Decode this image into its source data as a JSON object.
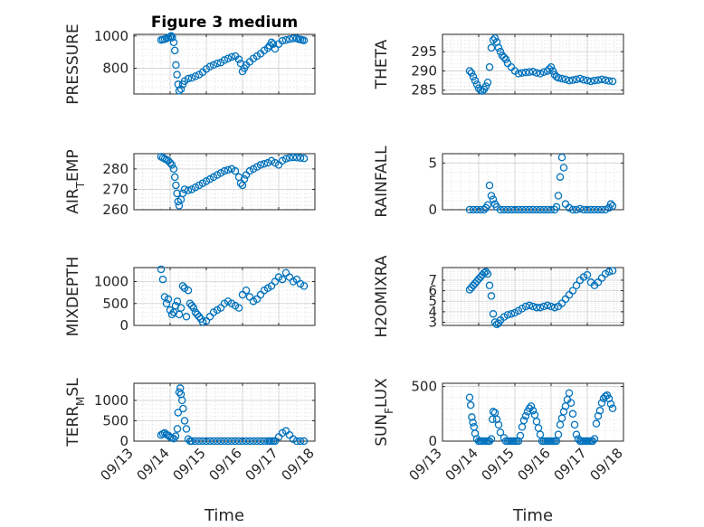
{
  "chart_data": [
    {
      "type": "scatter",
      "title": "Figure 3 medium",
      "ylabel": "PRESSURE",
      "xlabel": "",
      "xlim": [
        13,
        18
      ],
      "ylim": [
        640,
        1010
      ],
      "yticks": [
        800,
        1000
      ],
      "yticklabels": [
        "800",
        "1000"
      ],
      "xtick_labels_shown": false,
      "x": [
        13.75,
        13.8,
        13.85,
        13.9,
        13.95,
        14.0,
        14.03,
        14.06,
        14.1,
        14.13,
        14.16,
        14.19,
        14.22,
        14.25,
        14.3,
        14.35,
        14.4,
        14.5,
        14.6,
        14.7,
        14.8,
        14.9,
        15.0,
        15.1,
        15.2,
        15.3,
        15.4,
        15.5,
        15.6,
        15.7,
        15.8,
        15.9,
        15.95,
        16.0,
        16.05,
        16.1,
        16.2,
        16.3,
        16.4,
        16.5,
        16.6,
        16.7,
        16.75,
        16.8,
        16.85,
        16.9,
        17.0,
        17.1,
        17.2,
        17.3,
        17.4,
        17.5,
        17.55,
        17.6,
        17.65,
        17.7
      ],
      "y": [
        975,
        978,
        980,
        985,
        990,
        995,
        1000,
        990,
        960,
        910,
        820,
        760,
        700,
        660,
        670,
        700,
        720,
        735,
        740,
        750,
        760,
        775,
        795,
        810,
        820,
        830,
        835,
        850,
        860,
        870,
        875,
        855,
        830,
        780,
        800,
        820,
        840,
        860,
        875,
        890,
        910,
        925,
        940,
        960,
        950,
        920,
        950,
        970,
        975,
        980,
        985,
        985,
        980,
        978,
        975,
        972
      ]
    },
    {
      "type": "scatter",
      "title": "",
      "ylabel": "THETA",
      "xlabel": "",
      "xlim": [
        13,
        18
      ],
      "ylim": [
        284,
        299.5
      ],
      "yticks": [
        285,
        290,
        295
      ],
      "yticklabels": [
        "285",
        "290",
        "295"
      ],
      "xtick_labels_shown": false,
      "x": [
        13.75,
        13.8,
        13.85,
        13.9,
        13.95,
        14.0,
        14.05,
        14.1,
        14.15,
        14.2,
        14.25,
        14.3,
        14.35,
        14.4,
        14.45,
        14.5,
        14.55,
        14.6,
        14.65,
        14.7,
        14.75,
        14.8,
        14.9,
        15.0,
        15.1,
        15.2,
        15.3,
        15.4,
        15.5,
        15.6,
        15.7,
        15.8,
        15.9,
        15.95,
        16.0,
        16.05,
        16.1,
        16.15,
        16.2,
        16.3,
        16.4,
        16.5,
        16.6,
        16.7,
        16.8,
        16.9,
        17.0,
        17.1,
        17.2,
        17.3,
        17.4,
        17.5,
        17.6,
        17.7
      ],
      "y": [
        290,
        289.5,
        288.5,
        287.5,
        286.5,
        285.5,
        285,
        284.8,
        285.2,
        286,
        287,
        291,
        296,
        298,
        298.5,
        297.5,
        296,
        295,
        294,
        293.5,
        293,
        292,
        291,
        290,
        289.3,
        289.5,
        289.6,
        289.7,
        289.8,
        289.5,
        289.3,
        289.7,
        290,
        290.5,
        291,
        290,
        289,
        288.5,
        288.2,
        288,
        287.8,
        287.5,
        287.6,
        287.8,
        288,
        287.7,
        287.5,
        287.3,
        287.5,
        287.6,
        287.8,
        287.6,
        287.4,
        287.3
      ]
    },
    {
      "type": "scatter",
      "title": "",
      "ylabel": "AIR_TEMP",
      "xlabel": "",
      "xlim": [
        13,
        18
      ],
      "ylim": [
        260,
        287.5
      ],
      "yticks": [
        260,
        270,
        280
      ],
      "yticklabels": [
        "260",
        "270",
        "280"
      ],
      "xtick_labels_shown": false,
      "x": [
        13.75,
        13.8,
        13.85,
        13.9,
        13.95,
        14.0,
        14.05,
        14.1,
        14.13,
        14.16,
        14.19,
        14.22,
        14.25,
        14.3,
        14.35,
        14.4,
        14.5,
        14.6,
        14.7,
        14.8,
        14.9,
        15.0,
        15.1,
        15.2,
        15.3,
        15.4,
        15.5,
        15.6,
        15.7,
        15.8,
        15.9,
        15.95,
        16.0,
        16.05,
        16.1,
        16.2,
        16.3,
        16.4,
        16.5,
        16.6,
        16.7,
        16.8,
        16.9,
        17.0,
        17.1,
        17.2,
        17.3,
        17.4,
        17.5,
        17.6,
        17.7
      ],
      "y": [
        286,
        285.5,
        285,
        284.5,
        284,
        283,
        282,
        280,
        276,
        272,
        268,
        264,
        262,
        265,
        268,
        270,
        269.5,
        270,
        271,
        272,
        273,
        274,
        275,
        276,
        277,
        278,
        279,
        279.5,
        280,
        279,
        276,
        273,
        272,
        275,
        277,
        279,
        280,
        281,
        282,
        282.5,
        283,
        284,
        283,
        282,
        284,
        285,
        285.5,
        285.7,
        285.6,
        285.4,
        285.2
      ]
    },
    {
      "type": "scatter",
      "title": "",
      "ylabel": "RAINFALL",
      "xlabel": "",
      "xlim": [
        13,
        18
      ],
      "ylim": [
        0,
        6
      ],
      "yticks": [
        0,
        5
      ],
      "yticklabels": [
        "0",
        "5"
      ],
      "xtick_labels_shown": false,
      "x": [
        13.75,
        13.85,
        13.95,
        14.05,
        14.15,
        14.2,
        14.25,
        14.3,
        14.35,
        14.4,
        14.45,
        14.5,
        14.6,
        14.7,
        14.8,
        14.9,
        15.0,
        15.1,
        15.2,
        15.3,
        15.4,
        15.5,
        15.6,
        15.7,
        15.8,
        15.9,
        16.0,
        16.1,
        16.15,
        16.2,
        16.25,
        16.3,
        16.35,
        16.4,
        16.5,
        16.6,
        16.7,
        16.8,
        16.9,
        17.0,
        17.1,
        17.2,
        17.3,
        17.4,
        17.5,
        17.6,
        17.65,
        17.7
      ],
      "y": [
        0,
        0,
        0,
        0,
        0,
        0.2,
        0.5,
        2.6,
        1.5,
        1.1,
        0.6,
        0.3,
        0,
        0,
        0,
        0,
        0,
        0,
        0,
        0,
        0,
        0,
        0,
        0,
        0,
        0,
        0,
        0,
        0.3,
        1.5,
        3.5,
        5.6,
        4.5,
        0.6,
        0.2,
        0,
        0,
        0.1,
        0,
        0,
        0,
        0,
        0,
        0,
        0,
        0.2,
        0.6,
        0.4
      ]
    },
    {
      "type": "scatter",
      "title": "",
      "ylabel": "MIXDEPTH",
      "xlabel": "",
      "xlim": [
        13,
        18
      ],
      "ylim": [
        0,
        1320
      ],
      "yticks": [
        0,
        500,
        1000
      ],
      "yticklabels": [
        "0",
        "500",
        "1000"
      ],
      "xtick_labels_shown": false,
      "x": [
        13.75,
        13.8,
        13.85,
        13.9,
        13.95,
        14.0,
        14.05,
        14.1,
        14.15,
        14.2,
        14.25,
        14.3,
        14.35,
        14.4,
        14.45,
        14.5,
        14.55,
        14.6,
        14.65,
        14.7,
        14.75,
        14.8,
        14.85,
        14.9,
        15.0,
        15.1,
        15.2,
        15.3,
        15.4,
        15.5,
        15.6,
        15.7,
        15.8,
        15.9,
        16.0,
        16.1,
        16.2,
        16.3,
        16.4,
        16.5,
        16.6,
        16.7,
        16.8,
        16.9,
        17.0,
        17.1,
        17.2,
        17.3,
        17.4,
        17.5,
        17.6,
        17.7
      ],
      "y": [
        1280,
        1050,
        650,
        500,
        600,
        350,
        250,
        300,
        450,
        550,
        250,
        400,
        900,
        850,
        200,
        800,
        500,
        450,
        400,
        300,
        250,
        200,
        150,
        80,
        100,
        200,
        300,
        350,
        400,
        500,
        550,
        500,
        450,
        400,
        700,
        800,
        650,
        550,
        600,
        700,
        800,
        850,
        900,
        1000,
        1100,
        1050,
        1200,
        1100,
        1000,
        1050,
        950,
        900
      ]
    },
    {
      "type": "scatter",
      "title": "",
      "ylabel": "H2OMIXRA",
      "xlabel": "",
      "xlim": [
        13,
        18
      ],
      "ylim": [
        2.7,
        8.2
      ],
      "yticks": [
        3,
        4,
        5,
        6,
        7
      ],
      "yticklabels": [
        "3",
        "4",
        "5",
        "6",
        "7"
      ],
      "xtick_labels_shown": false,
      "x": [
        13.75,
        13.8,
        13.85,
        13.9,
        13.95,
        14.0,
        14.05,
        14.1,
        14.15,
        14.2,
        14.25,
        14.3,
        14.35,
        14.4,
        14.45,
        14.5,
        14.55,
        14.6,
        14.7,
        14.8,
        14.9,
        15.0,
        15.1,
        15.2,
        15.3,
        15.4,
        15.5,
        15.6,
        15.7,
        15.8,
        15.9,
        16.0,
        16.1,
        16.2,
        16.3,
        16.4,
        16.5,
        16.6,
        16.7,
        16.8,
        16.9,
        17.0,
        17.1,
        17.2,
        17.3,
        17.4,
        17.5,
        17.6,
        17.7
      ],
      "y": [
        6.1,
        6.3,
        6.5,
        6.7,
        6.9,
        7.1,
        7.3,
        7.5,
        7.7,
        7.8,
        7.6,
        6.5,
        5.5,
        3.8,
        3.0,
        2.8,
        2.9,
        3.2,
        3.5,
        3.7,
        3.8,
        3.9,
        4.1,
        4.3,
        4.5,
        4.6,
        4.5,
        4.4,
        4.4,
        4.5,
        4.6,
        4.5,
        4.4,
        4.5,
        4.8,
        5.2,
        5.6,
        6.0,
        6.5,
        7.0,
        7.3,
        7.5,
        6.8,
        6.5,
        6.8,
        7.2,
        7.6,
        7.8,
        7.9
      ]
    },
    {
      "type": "scatter",
      "title": "",
      "ylabel": "TERR_MSL",
      "xlabel": "Time",
      "xlim": [
        13,
        18
      ],
      "ylim": [
        0,
        1420
      ],
      "yticks": [
        0,
        500,
        1000
      ],
      "yticklabels": [
        "0",
        "500",
        "1000"
      ],
      "xticks": [
        13,
        14,
        15,
        16,
        17,
        18
      ],
      "xticklabels": [
        "09/13",
        "09/14",
        "09/15",
        "09/16",
        "09/17",
        "09/18"
      ],
      "xtick_labels_shown": true,
      "x": [
        13.75,
        13.8,
        13.85,
        13.9,
        13.95,
        14.0,
        14.05,
        14.1,
        14.15,
        14.2,
        14.22,
        14.25,
        14.28,
        14.3,
        14.33,
        14.36,
        14.4,
        14.45,
        14.5,
        14.55,
        14.6,
        14.7,
        14.8,
        14.9,
        15.0,
        15.1,
        15.2,
        15.3,
        15.4,
        15.5,
        15.6,
        15.7,
        15.8,
        15.9,
        16.0,
        16.1,
        16.2,
        16.3,
        16.4,
        16.5,
        16.6,
        16.7,
        16.75,
        16.8,
        16.85,
        16.9,
        17.0,
        17.1,
        17.2,
        17.3,
        17.4,
        17.5,
        17.6,
        17.7
      ],
      "y": [
        150,
        180,
        200,
        160,
        140,
        100,
        80,
        60,
        120,
        300,
        700,
        1200,
        1300,
        1150,
        1000,
        800,
        500,
        300,
        50,
        0,
        0,
        0,
        0,
        0,
        0,
        0,
        0,
        0,
        0,
        0,
        0,
        0,
        0,
        0,
        0,
        0,
        0,
        0,
        0,
        0,
        0,
        0,
        0,
        0,
        0,
        0,
        100,
        200,
        250,
        150,
        50,
        0,
        0,
        0
      ]
    },
    {
      "type": "scatter",
      "title": "",
      "ylabel": "SUN_FLUX",
      "xlabel": "Time",
      "xlim": [
        13,
        18
      ],
      "ylim": [
        0,
        530
      ],
      "yticks": [
        0,
        500
      ],
      "yticklabels": [
        "0",
        "500"
      ],
      "xticks": [
        13,
        14,
        15,
        16,
        17,
        18
      ],
      "xticklabels": [
        "09/13",
        "09/14",
        "09/15",
        "09/16",
        "09/17",
        "09/18"
      ],
      "xtick_labels_shown": true,
      "x": [
        13.75,
        13.78,
        13.81,
        13.84,
        13.87,
        13.9,
        13.95,
        14.0,
        14.05,
        14.1,
        14.15,
        14.2,
        14.25,
        14.3,
        14.35,
        14.38,
        14.4,
        14.45,
        14.5,
        14.55,
        14.6,
        14.7,
        14.75,
        14.8,
        14.85,
        14.9,
        14.95,
        15.0,
        15.05,
        15.1,
        15.15,
        15.2,
        15.25,
        15.3,
        15.35,
        15.4,
        15.45,
        15.5,
        15.55,
        15.6,
        15.65,
        15.7,
        15.75,
        15.8,
        15.85,
        15.9,
        15.95,
        16.0,
        16.05,
        16.1,
        16.15,
        16.2,
        16.25,
        16.3,
        16.35,
        16.4,
        16.45,
        16.5,
        16.55,
        16.6,
        16.65,
        16.7,
        16.75,
        16.8,
        16.85,
        16.9,
        16.95,
        17.0,
        17.05,
        17.1,
        17.15,
        17.2,
        17.25,
        17.3,
        17.35,
        17.4,
        17.45,
        17.5,
        17.55,
        17.6,
        17.65,
        17.7
      ],
      "y": [
        400,
        330,
        220,
        170,
        130,
        70,
        20,
        0,
        0,
        0,
        0,
        0,
        0,
        0,
        20,
        200,
        270,
        260,
        200,
        150,
        80,
        30,
        0,
        0,
        0,
        0,
        0,
        0,
        0,
        0,
        50,
        130,
        190,
        230,
        270,
        300,
        320,
        280,
        240,
        180,
        120,
        60,
        0,
        0,
        0,
        0,
        0,
        0,
        0,
        0,
        0,
        60,
        150,
        210,
        270,
        320,
        380,
        440,
        350,
        250,
        150,
        60,
        20,
        0,
        0,
        0,
        0,
        0,
        0,
        0,
        0,
        20,
        160,
        230,
        280,
        350,
        390,
        410,
        420,
        390,
        340,
        300
      ]
    }
  ]
}
